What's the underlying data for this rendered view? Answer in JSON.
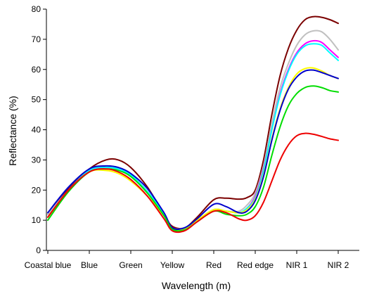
{
  "chart_data": {
    "type": "line",
    "title": "",
    "xlabel": "Wavelength (m)",
    "ylabel": "Reflectance (%)",
    "ylim": [
      0,
      80
    ],
    "yticks": [
      0,
      10,
      20,
      30,
      40,
      50,
      60,
      70,
      80
    ],
    "categories": [
      "Coastal blue",
      "Blue",
      "Green",
      "Yellow",
      "Red",
      "Red edge",
      "NIR 1",
      "NIR 2"
    ],
    "grid": false,
    "legend": "none",
    "series": [
      {
        "color": "#7b0000",
        "x": [
          0,
          0.5,
          1,
          1.4,
          1.7,
          2,
          2.4,
          2.8,
          3,
          3.3,
          3.6,
          4,
          4.3,
          4.6,
          4.8,
          5,
          5.2,
          5.4,
          5.6,
          5.8,
          6,
          6.2,
          6.4,
          6.6,
          6.8,
          7
        ],
        "y": [
          12,
          20.5,
          27,
          30,
          30,
          27.5,
          21,
          12,
          8,
          7.5,
          11,
          16.8,
          17.3,
          17,
          17.5,
          20,
          30,
          45,
          58,
          67,
          73,
          76.5,
          77.5,
          77.3,
          76.5,
          75.3
        ]
      },
      {
        "color": "#c0c0c0",
        "x": [
          0,
          0.5,
          1,
          1.4,
          1.7,
          2,
          2.4,
          2.8,
          3,
          3.3,
          3.6,
          4,
          4.3,
          4.6,
          4.8,
          5,
          5.2,
          5.4,
          5.6,
          5.8,
          6,
          6.2,
          6.4,
          6.6,
          6.8,
          7
        ],
        "y": [
          12,
          20,
          26.5,
          27.5,
          27,
          25,
          19.5,
          12,
          7.5,
          7.5,
          10,
          13.5,
          13,
          13,
          15,
          19,
          28,
          42,
          54,
          62,
          68,
          71.5,
          72.8,
          72.5,
          70,
          66.5
        ]
      },
      {
        "color": "#ff00ff",
        "x": [
          0,
          0.5,
          1,
          1.4,
          1.7,
          2,
          2.4,
          2.8,
          3,
          3.3,
          3.6,
          4,
          4.3,
          4.6,
          4.8,
          5,
          5.2,
          5.4,
          5.6,
          5.8,
          6,
          6.2,
          6.4,
          6.6,
          6.8,
          7
        ],
        "y": [
          11,
          20,
          26.5,
          27.5,
          27,
          25,
          19.5,
          12,
          7,
          7.5,
          10,
          13.5,
          13,
          12.5,
          14,
          18,
          27,
          40,
          52,
          60,
          65.5,
          68.5,
          69.5,
          69,
          66.5,
          64
        ]
      },
      {
        "color": "#00ffff",
        "x": [
          0,
          0.5,
          1,
          1.4,
          1.7,
          2,
          2.4,
          2.8,
          3,
          3.3,
          3.6,
          4,
          4.3,
          4.6,
          4.8,
          5,
          5.2,
          5.4,
          5.6,
          5.8,
          6,
          6.2,
          6.4,
          6.6,
          6.8,
          7
        ],
        "y": [
          11,
          20,
          26.5,
          27.5,
          27,
          25,
          19.5,
          12,
          7,
          7.5,
          10,
          13.5,
          13,
          12.5,
          14,
          17.5,
          26.5,
          40,
          51.5,
          59.5,
          65,
          67.8,
          68.5,
          68,
          65.5,
          63
        ]
      },
      {
        "color": "#ffff00",
        "x": [
          0,
          0.5,
          1,
          1.4,
          1.7,
          2,
          2.4,
          2.8,
          3,
          3.3,
          3.6,
          4,
          4.3,
          4.6,
          4.8,
          5,
          5.2,
          5.4,
          5.6,
          5.8,
          6,
          6.2,
          6.4,
          6.6,
          6.8,
          7
        ],
        "y": [
          11,
          20,
          26,
          26.5,
          25.5,
          23,
          18,
          11.5,
          7,
          7,
          10,
          13.5,
          13,
          12.5,
          13.5,
          17,
          25,
          37,
          47,
          54,
          58.5,
          60.3,
          60.5,
          59.5,
          58,
          57
        ]
      },
      {
        "color": "#0000cc",
        "x": [
          0,
          0.5,
          1,
          1.4,
          1.7,
          2,
          2.4,
          2.8,
          3,
          3.3,
          3.6,
          4,
          4.3,
          4.6,
          4.8,
          5,
          5.2,
          5.4,
          5.6,
          5.8,
          6,
          6.2,
          6.4,
          6.6,
          6.8,
          7
        ],
        "y": [
          12.5,
          21,
          27,
          28,
          27.5,
          25.5,
          20.5,
          12.5,
          7.5,
          7.5,
          10.5,
          15.3,
          14.5,
          12.5,
          13,
          16.5,
          24.5,
          36.5,
          46.5,
          53.5,
          57.5,
          59.5,
          59.8,
          59,
          58,
          57
        ]
      },
      {
        "color": "#00dd00",
        "x": [
          0,
          0.5,
          1,
          1.4,
          1.7,
          2,
          2.4,
          2.8,
          3,
          3.3,
          3.6,
          4,
          4.3,
          4.6,
          4.8,
          5,
          5.2,
          5.4,
          5.6,
          5.8,
          6,
          6.2,
          6.4,
          6.6,
          6.8,
          7
        ],
        "y": [
          10,
          19.5,
          26,
          27,
          26.5,
          24.5,
          19,
          11.5,
          7,
          6.8,
          9.5,
          13,
          12,
          11.5,
          12,
          14.5,
          21,
          31.5,
          41,
          48,
          52,
          54,
          54.5,
          54,
          53,
          52.5
        ]
      },
      {
        "color": "#ee0000",
        "x": [
          0,
          0.5,
          1,
          1.4,
          1.7,
          2,
          2.4,
          2.8,
          3,
          3.3,
          3.6,
          4,
          4.3,
          4.6,
          4.8,
          5,
          5.2,
          5.4,
          5.6,
          5.8,
          6,
          6.2,
          6.4,
          6.6,
          6.8,
          7
        ],
        "y": [
          11,
          20,
          26,
          27,
          26,
          23.5,
          18,
          10.5,
          6.5,
          6.5,
          9.5,
          13,
          12.5,
          10.5,
          10,
          11.5,
          16,
          23,
          30,
          35,
          38,
          38.8,
          38.5,
          37.8,
          37,
          36.5
        ]
      }
    ]
  }
}
